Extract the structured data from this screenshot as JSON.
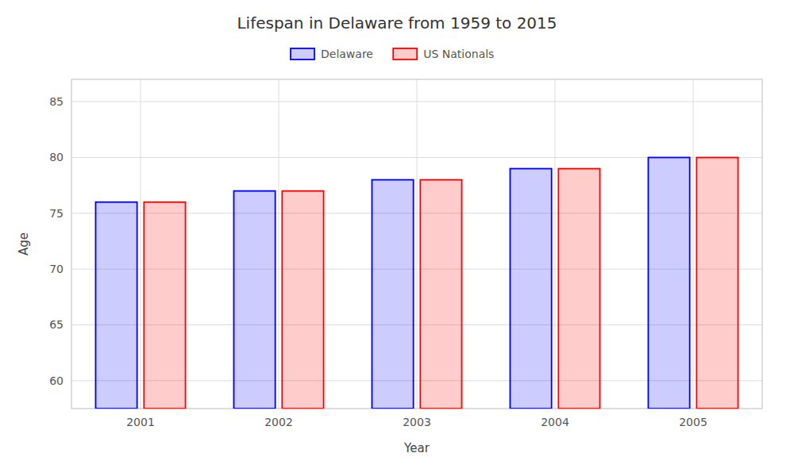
{
  "chart_data": {
    "type": "bar",
    "title": "Lifespan in Delaware from 1959 to 2015",
    "x_label": "Year",
    "y_label": "Age",
    "categories": [
      "2001",
      "2002",
      "2003",
      "2004",
      "2005"
    ],
    "series": [
      {
        "name": "Delaware",
        "color": "#0000ff",
        "values": [
          76,
          77,
          78,
          79,
          80
        ]
      },
      {
        "name": "US Nationals",
        "color": "#ff0000",
        "values": [
          76,
          77,
          78,
          79,
          80
        ]
      }
    ],
    "ylim": [
      57.5,
      87
    ],
    "yticks": [
      60,
      65,
      70,
      75,
      80,
      85
    ],
    "grid": true,
    "legend": "top"
  }
}
